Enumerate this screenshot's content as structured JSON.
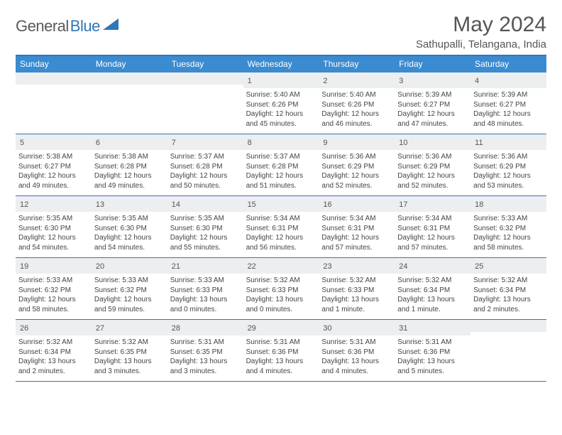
{
  "logo": {
    "text1": "General",
    "text2": "Blue"
  },
  "title": "May 2024",
  "location": "Sathupalli, Telangana, India",
  "dayHeaders": [
    "Sunday",
    "Monday",
    "Tuesday",
    "Wednesday",
    "Thursday",
    "Friday",
    "Saturday"
  ],
  "colors": {
    "header_bg": "#3b8bd1",
    "border": "#2f77b8",
    "daynum_bg": "#eceef0",
    "text": "#555"
  },
  "weeks": [
    [
      {
        "day": "",
        "sunrise": "",
        "sunset": "",
        "daylight": ""
      },
      {
        "day": "",
        "sunrise": "",
        "sunset": "",
        "daylight": ""
      },
      {
        "day": "",
        "sunrise": "",
        "sunset": "",
        "daylight": ""
      },
      {
        "day": "1",
        "sunrise": "Sunrise: 5:40 AM",
        "sunset": "Sunset: 6:26 PM",
        "daylight": "Daylight: 12 hours and 45 minutes."
      },
      {
        "day": "2",
        "sunrise": "Sunrise: 5:40 AM",
        "sunset": "Sunset: 6:26 PM",
        "daylight": "Daylight: 12 hours and 46 minutes."
      },
      {
        "day": "3",
        "sunrise": "Sunrise: 5:39 AM",
        "sunset": "Sunset: 6:27 PM",
        "daylight": "Daylight: 12 hours and 47 minutes."
      },
      {
        "day": "4",
        "sunrise": "Sunrise: 5:39 AM",
        "sunset": "Sunset: 6:27 PM",
        "daylight": "Daylight: 12 hours and 48 minutes."
      }
    ],
    [
      {
        "day": "5",
        "sunrise": "Sunrise: 5:38 AM",
        "sunset": "Sunset: 6:27 PM",
        "daylight": "Daylight: 12 hours and 49 minutes."
      },
      {
        "day": "6",
        "sunrise": "Sunrise: 5:38 AM",
        "sunset": "Sunset: 6:28 PM",
        "daylight": "Daylight: 12 hours and 49 minutes."
      },
      {
        "day": "7",
        "sunrise": "Sunrise: 5:37 AM",
        "sunset": "Sunset: 6:28 PM",
        "daylight": "Daylight: 12 hours and 50 minutes."
      },
      {
        "day": "8",
        "sunrise": "Sunrise: 5:37 AM",
        "sunset": "Sunset: 6:28 PM",
        "daylight": "Daylight: 12 hours and 51 minutes."
      },
      {
        "day": "9",
        "sunrise": "Sunrise: 5:36 AM",
        "sunset": "Sunset: 6:29 PM",
        "daylight": "Daylight: 12 hours and 52 minutes."
      },
      {
        "day": "10",
        "sunrise": "Sunrise: 5:36 AM",
        "sunset": "Sunset: 6:29 PM",
        "daylight": "Daylight: 12 hours and 52 minutes."
      },
      {
        "day": "11",
        "sunrise": "Sunrise: 5:36 AM",
        "sunset": "Sunset: 6:29 PM",
        "daylight": "Daylight: 12 hours and 53 minutes."
      }
    ],
    [
      {
        "day": "12",
        "sunrise": "Sunrise: 5:35 AM",
        "sunset": "Sunset: 6:30 PM",
        "daylight": "Daylight: 12 hours and 54 minutes."
      },
      {
        "day": "13",
        "sunrise": "Sunrise: 5:35 AM",
        "sunset": "Sunset: 6:30 PM",
        "daylight": "Daylight: 12 hours and 54 minutes."
      },
      {
        "day": "14",
        "sunrise": "Sunrise: 5:35 AM",
        "sunset": "Sunset: 6:30 PM",
        "daylight": "Daylight: 12 hours and 55 minutes."
      },
      {
        "day": "15",
        "sunrise": "Sunrise: 5:34 AM",
        "sunset": "Sunset: 6:31 PM",
        "daylight": "Daylight: 12 hours and 56 minutes."
      },
      {
        "day": "16",
        "sunrise": "Sunrise: 5:34 AM",
        "sunset": "Sunset: 6:31 PM",
        "daylight": "Daylight: 12 hours and 57 minutes."
      },
      {
        "day": "17",
        "sunrise": "Sunrise: 5:34 AM",
        "sunset": "Sunset: 6:31 PM",
        "daylight": "Daylight: 12 hours and 57 minutes."
      },
      {
        "day": "18",
        "sunrise": "Sunrise: 5:33 AM",
        "sunset": "Sunset: 6:32 PM",
        "daylight": "Daylight: 12 hours and 58 minutes."
      }
    ],
    [
      {
        "day": "19",
        "sunrise": "Sunrise: 5:33 AM",
        "sunset": "Sunset: 6:32 PM",
        "daylight": "Daylight: 12 hours and 58 minutes."
      },
      {
        "day": "20",
        "sunrise": "Sunrise: 5:33 AM",
        "sunset": "Sunset: 6:32 PM",
        "daylight": "Daylight: 12 hours and 59 minutes."
      },
      {
        "day": "21",
        "sunrise": "Sunrise: 5:33 AM",
        "sunset": "Sunset: 6:33 PM",
        "daylight": "Daylight: 13 hours and 0 minutes."
      },
      {
        "day": "22",
        "sunrise": "Sunrise: 5:32 AM",
        "sunset": "Sunset: 6:33 PM",
        "daylight": "Daylight: 13 hours and 0 minutes."
      },
      {
        "day": "23",
        "sunrise": "Sunrise: 5:32 AM",
        "sunset": "Sunset: 6:33 PM",
        "daylight": "Daylight: 13 hours and 1 minute."
      },
      {
        "day": "24",
        "sunrise": "Sunrise: 5:32 AM",
        "sunset": "Sunset: 6:34 PM",
        "daylight": "Daylight: 13 hours and 1 minute."
      },
      {
        "day": "25",
        "sunrise": "Sunrise: 5:32 AM",
        "sunset": "Sunset: 6:34 PM",
        "daylight": "Daylight: 13 hours and 2 minutes."
      }
    ],
    [
      {
        "day": "26",
        "sunrise": "Sunrise: 5:32 AM",
        "sunset": "Sunset: 6:34 PM",
        "daylight": "Daylight: 13 hours and 2 minutes."
      },
      {
        "day": "27",
        "sunrise": "Sunrise: 5:32 AM",
        "sunset": "Sunset: 6:35 PM",
        "daylight": "Daylight: 13 hours and 3 minutes."
      },
      {
        "day": "28",
        "sunrise": "Sunrise: 5:31 AM",
        "sunset": "Sunset: 6:35 PM",
        "daylight": "Daylight: 13 hours and 3 minutes."
      },
      {
        "day": "29",
        "sunrise": "Sunrise: 5:31 AM",
        "sunset": "Sunset: 6:36 PM",
        "daylight": "Daylight: 13 hours and 4 minutes."
      },
      {
        "day": "30",
        "sunrise": "Sunrise: 5:31 AM",
        "sunset": "Sunset: 6:36 PM",
        "daylight": "Daylight: 13 hours and 4 minutes."
      },
      {
        "day": "31",
        "sunrise": "Sunrise: 5:31 AM",
        "sunset": "Sunset: 6:36 PM",
        "daylight": "Daylight: 13 hours and 5 minutes."
      },
      {
        "day": "",
        "sunrise": "",
        "sunset": "",
        "daylight": ""
      }
    ]
  ]
}
